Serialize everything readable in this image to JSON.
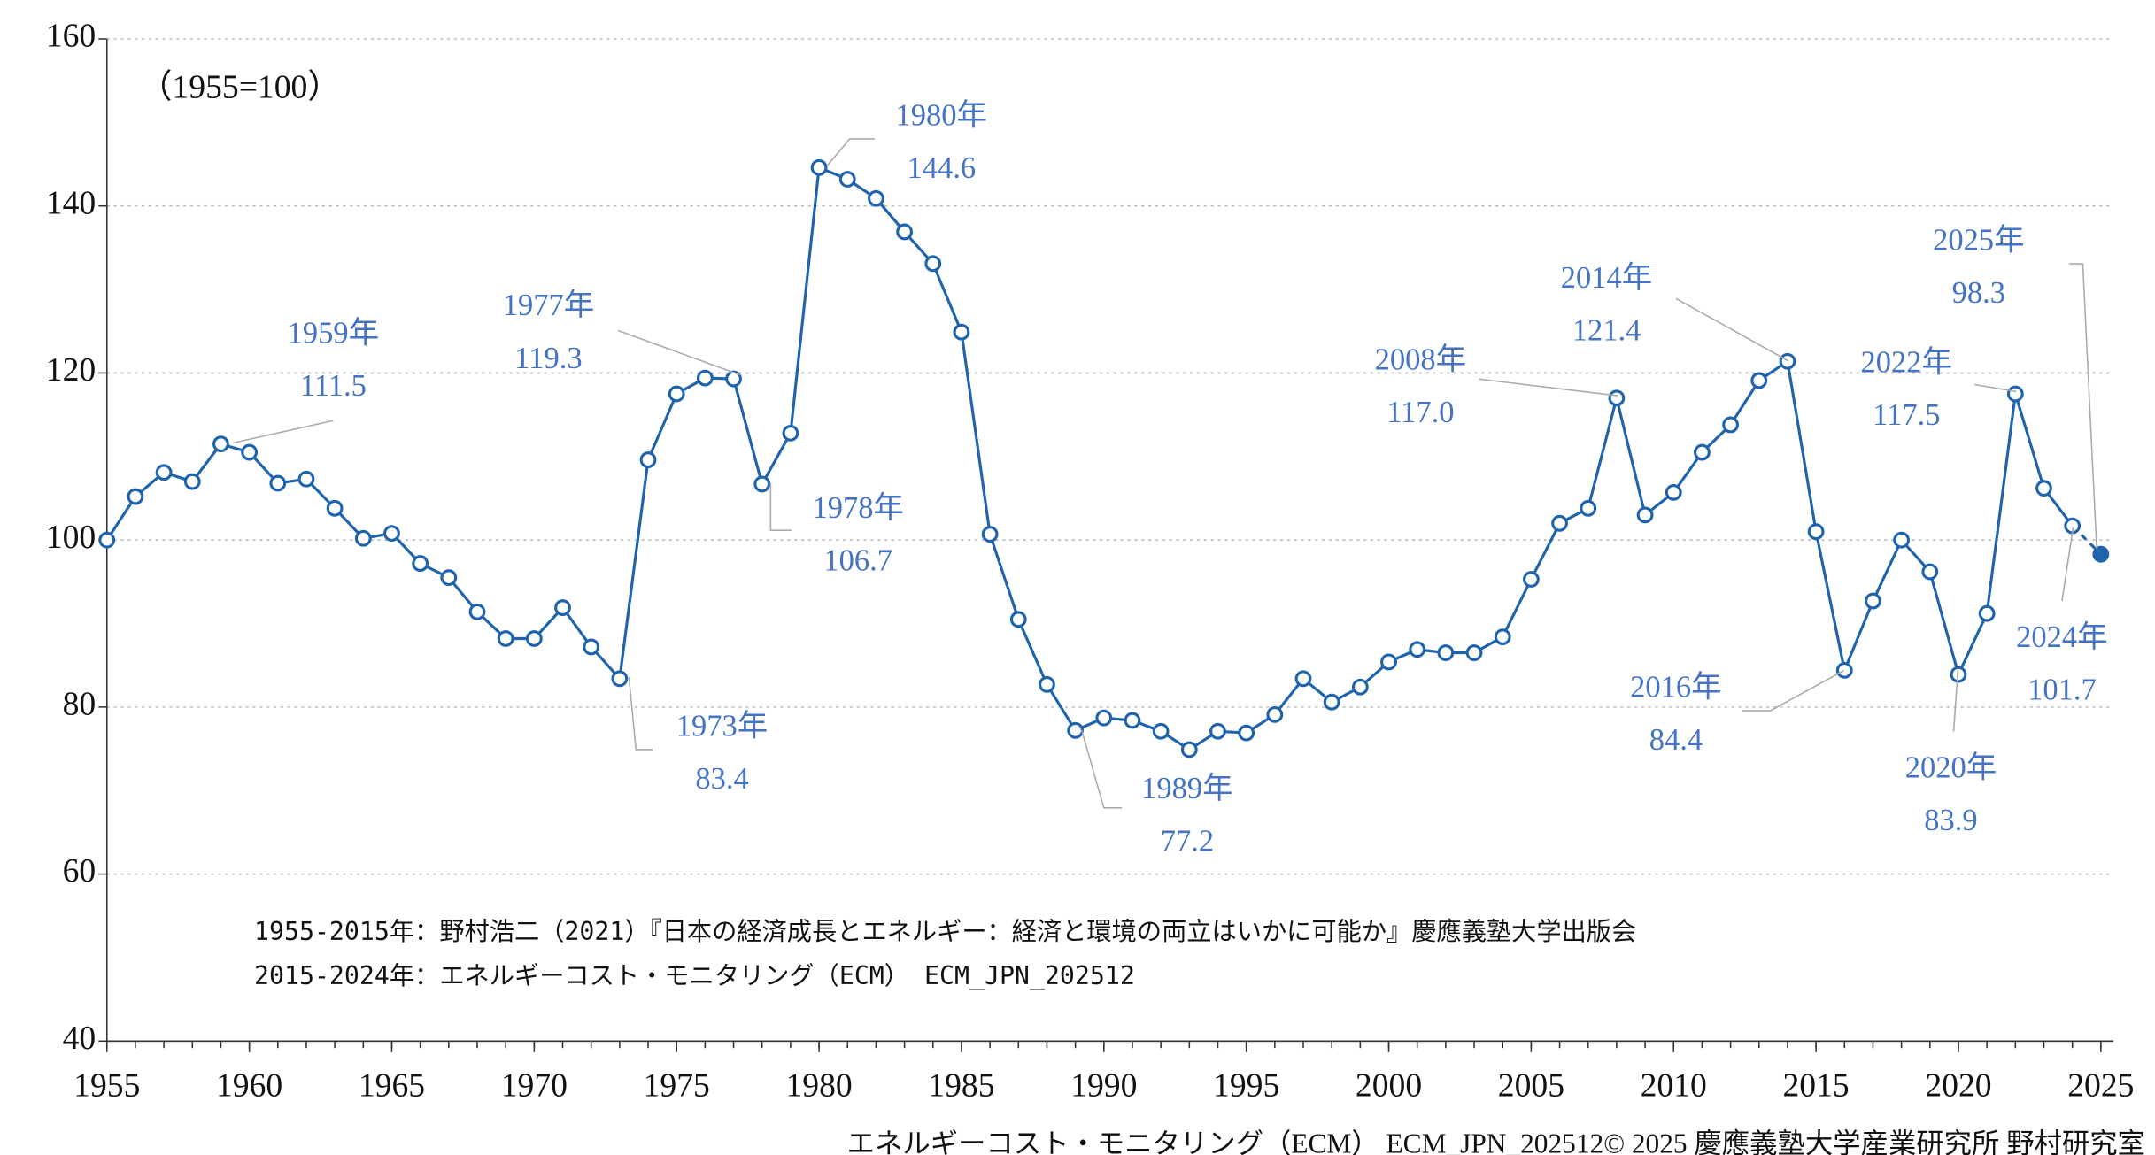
{
  "chart_data": {
    "type": "line",
    "subtitle": "（1955=100）",
    "notes": [
      "1955-2015年：野村浩二（2021）『日本の経済成長とエネルギー：経済と環境の両立はいかに可能か』慶應義塾大学出版会",
      "2015-2024年：エネルギーコスト・モニタリング（ECM） ECM_JPN_202512"
    ],
    "footer": "エネルギーコスト・モニタリング（ECM） ECM_JPN_202512© 2025 慶應義塾大学産業研究所 野村研究室",
    "x": [
      1955,
      1956,
      1957,
      1958,
      1959,
      1960,
      1961,
      1962,
      1963,
      1964,
      1965,
      1966,
      1967,
      1968,
      1969,
      1970,
      1971,
      1972,
      1973,
      1974,
      1975,
      1976,
      1977,
      1978,
      1979,
      1980,
      1981,
      1982,
      1983,
      1984,
      1985,
      1986,
      1987,
      1988,
      1989,
      1990,
      1991,
      1992,
      1993,
      1994,
      1995,
      1996,
      1997,
      1998,
      1999,
      2000,
      2001,
      2002,
      2003,
      2004,
      2005,
      2006,
      2007,
      2008,
      2009,
      2010,
      2011,
      2012,
      2013,
      2014,
      2015,
      2016,
      2017,
      2018,
      2019,
      2020,
      2021,
      2022,
      2023,
      2024,
      2025
    ],
    "series": [
      {
        "color": "#1f63ad",
        "label_color": "#4472c4",
        "values": [
          100,
          105.2,
          108.1,
          107.0,
          111.5,
          110.5,
          106.8,
          107.3,
          103.8,
          100.2,
          100.8,
          97.2,
          95.5,
          91.4,
          88.2,
          88.2,
          91.9,
          87.2,
          83.4,
          109.6,
          117.5,
          119.4,
          119.3,
          106.7,
          112.8,
          144.6,
          143.2,
          140.9,
          136.9,
          133.1,
          124.9,
          100.7,
          90.5,
          82.7,
          77.2,
          78.7,
          78.4,
          77.1,
          74.9,
          77.1,
          76.9,
          79.1,
          83.4,
          80.6,
          82.4,
          85.4,
          86.9,
          86.5,
          86.5,
          88.4,
          95.3,
          102.0,
          103.8,
          117.0,
          103.0,
          105.7,
          110.5,
          113.8,
          119.1,
          121.4,
          101.0,
          84.4,
          92.7,
          100.0,
          96.2,
          83.9,
          91.2,
          117.5,
          106.2,
          101.7,
          98.3
        ]
      }
    ],
    "annotations": [
      {
        "x": 1959,
        "label": "1959年",
        "value_label": "111.5"
      },
      {
        "x": 1973,
        "label": "1973年",
        "value_label": "83.4"
      },
      {
        "x": 1977,
        "label": "1977年",
        "value_label": "119.3"
      },
      {
        "x": 1978,
        "label": "1978年",
        "value_label": "106.7"
      },
      {
        "x": 1980,
        "label": "1980年",
        "value_label": "144.6"
      },
      {
        "x": 1989,
        "label": "1989年",
        "value_label": "77.2"
      },
      {
        "x": 2008,
        "label": "2008年",
        "value_label": "117.0"
      },
      {
        "x": 2014,
        "label": "2014年",
        "value_label": "121.4"
      },
      {
        "x": 2016,
        "label": "2016年",
        "value_label": "84.4"
      },
      {
        "x": 2020,
        "label": "2020年",
        "value_label": "83.9"
      },
      {
        "x": 2022,
        "label": "2022年",
        "value_label": "117.5"
      },
      {
        "x": 2024,
        "label": "2024年",
        "value_label": "101.7"
      },
      {
        "x": 2025,
        "label": "2025年",
        "value_label": "98.3"
      }
    ],
    "xlim": [
      1955,
      2025
    ],
    "xticks": [
      1955,
      1960,
      1965,
      1970,
      1975,
      1980,
      1985,
      1990,
      1995,
      2000,
      2005,
      2010,
      2015,
      2020,
      2025
    ],
    "ylim": [
      40,
      160
    ],
    "yticks": [
      40,
      60,
      80,
      100,
      120,
      140,
      160
    ],
    "grid": true
  }
}
